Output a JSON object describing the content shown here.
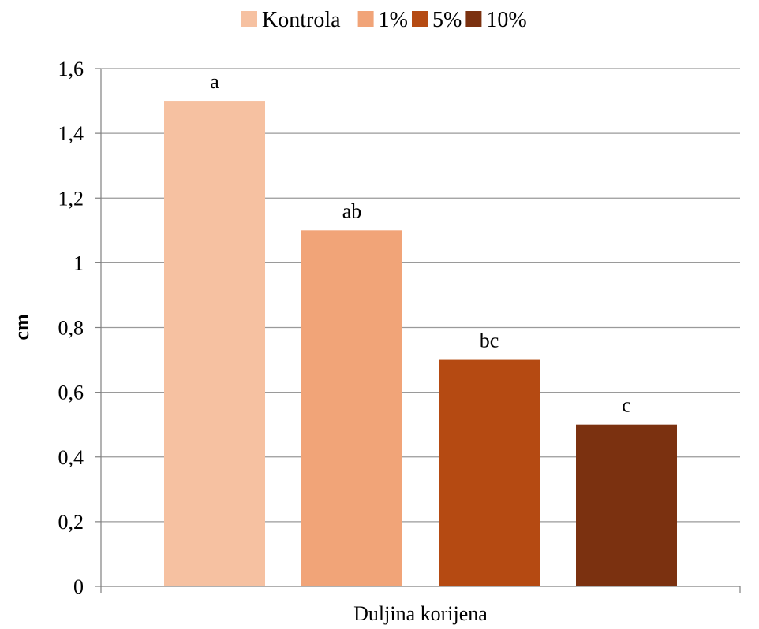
{
  "chart_data": {
    "type": "bar",
    "categories": [
      "Duljina korijena"
    ],
    "series": [
      {
        "name": "Kontrola",
        "values": [
          1.5
        ],
        "label": "a",
        "color": "#F6C1A1"
      },
      {
        "name": "1%",
        "values": [
          1.1
        ],
        "label": "ab",
        "color": "#F1A478"
      },
      {
        "name": "5%",
        "values": [
          0.7
        ],
        "label": "bc",
        "color": "#B54A12"
      },
      {
        "name": "10%",
        "values": [
          0.5
        ],
        "label": "c",
        "color": "#7B3110"
      }
    ],
    "title": "",
    "xlabel": "",
    "ylabel": "cm",
    "ylim": [
      0,
      1.6
    ],
    "yticks": [
      "0",
      "0,2",
      "0,4",
      "0,6",
      "0,8",
      "1",
      "1,2",
      "1,4",
      "1,6"
    ],
    "grid": true,
    "legend_position": "top"
  }
}
